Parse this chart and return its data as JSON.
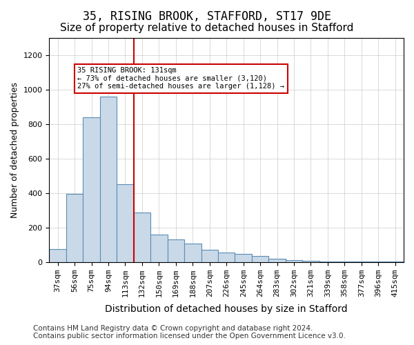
{
  "title": "35, RISING BROOK, STAFFORD, ST17 9DE",
  "subtitle": "Size of property relative to detached houses in Stafford",
  "xlabel": "Distribution of detached houses by size in Stafford",
  "ylabel": "Number of detached properties",
  "categories": [
    "37sqm",
    "56sqm",
    "75sqm",
    "94sqm",
    "113sqm",
    "132sqm",
    "150sqm",
    "169sqm",
    "188sqm",
    "207sqm",
    "226sqm",
    "245sqm",
    "264sqm",
    "283sqm",
    "302sqm",
    "321sqm",
    "339sqm",
    "358sqm",
    "377sqm",
    "396sqm",
    "415sqm"
  ],
  "values": [
    75,
    395,
    840,
    960,
    450,
    285,
    160,
    130,
    105,
    70,
    55,
    45,
    35,
    20,
    10,
    5,
    3,
    2,
    1,
    1,
    1
  ],
  "bar_color": "#c9d9e8",
  "bar_edge_color": "#5a8db5",
  "vline_x": 5,
  "vline_color": "#cc0000",
  "annotation_text": "35 RISING BROOK: 131sqm\n← 73% of detached houses are smaller (3,120)\n27% of semi-detached houses are larger (1,128) →",
  "annotation_box_color": "#ffffff",
  "annotation_box_edge_color": "#cc0000",
  "ylim": [
    0,
    1300
  ],
  "yticks": [
    0,
    200,
    400,
    600,
    800,
    1000,
    1200
  ],
  "footer_line1": "Contains HM Land Registry data © Crown copyright and database right 2024.",
  "footer_line2": "Contains public sector information licensed under the Open Government Licence v3.0.",
  "background_color": "#ffffff",
  "grid_color": "#cccccc",
  "title_fontsize": 12,
  "subtitle_fontsize": 11,
  "xlabel_fontsize": 10,
  "ylabel_fontsize": 9,
  "tick_fontsize": 8,
  "footer_fontsize": 7.5
}
